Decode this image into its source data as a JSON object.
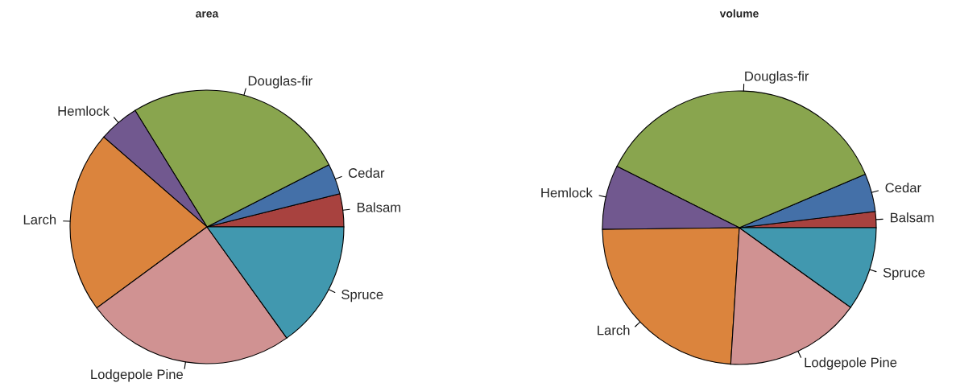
{
  "chart_data": [
    {
      "type": "pie",
      "title": "area",
      "categories": [
        "Balsam",
        "Cedar",
        "Douglas-fir",
        "Hemlock",
        "Larch",
        "Lodgepole Pine",
        "Spruce"
      ],
      "values": [
        3.9,
        3.6,
        26.3,
        4.8,
        21.5,
        24.8,
        15.1
      ],
      "colors": [
        "#a8423f",
        "#4470a8",
        "#89a54e",
        "#71588f",
        "#db843d",
        "#d09292",
        "#4198af"
      ]
    },
    {
      "type": "pie",
      "title": "volume",
      "categories": [
        "Balsam",
        "Cedar",
        "Douglas-fir",
        "Hemlock",
        "Larch",
        "Lodgepole Pine",
        "Spruce"
      ],
      "values": [
        1.9,
        4.5,
        36.2,
        7.6,
        23.8,
        16.1,
        9.9
      ],
      "colors": [
        "#a8423f",
        "#4470a8",
        "#89a54e",
        "#71588f",
        "#db843d",
        "#d09292",
        "#4198af"
      ]
    }
  ]
}
